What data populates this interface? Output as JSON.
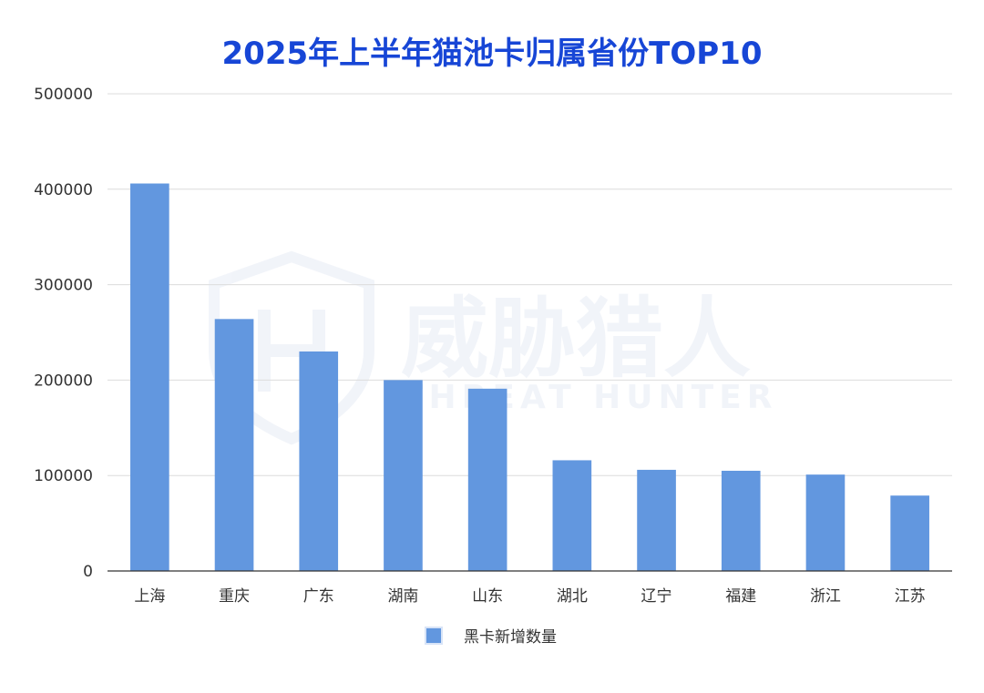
{
  "chart_data": {
    "type": "bar",
    "title": "2025年上半年猫池卡归属省份TOP10",
    "xlabel": "",
    "ylabel": "",
    "categories": [
      "上海",
      "重庆",
      "广东",
      "湖南",
      "山东",
      "湖北",
      "辽宁",
      "福建",
      "浙江",
      "江苏"
    ],
    "series": [
      {
        "name": "黑卡新增数量",
        "values": [
          406000,
          264000,
          230000,
          200000,
          191000,
          116000,
          106000,
          105000,
          101000,
          79000
        ],
        "color": "#6297df"
      }
    ],
    "ylim": [
      0,
      500000
    ],
    "yticks": [
      "0",
      "100000",
      "200000",
      "300000",
      "400000",
      "500000"
    ],
    "grid": true,
    "legend_position": "bottom-center"
  },
  "watermark": {
    "text_cn": "威胁猎人",
    "text_en": "THREAT HUNTER"
  }
}
